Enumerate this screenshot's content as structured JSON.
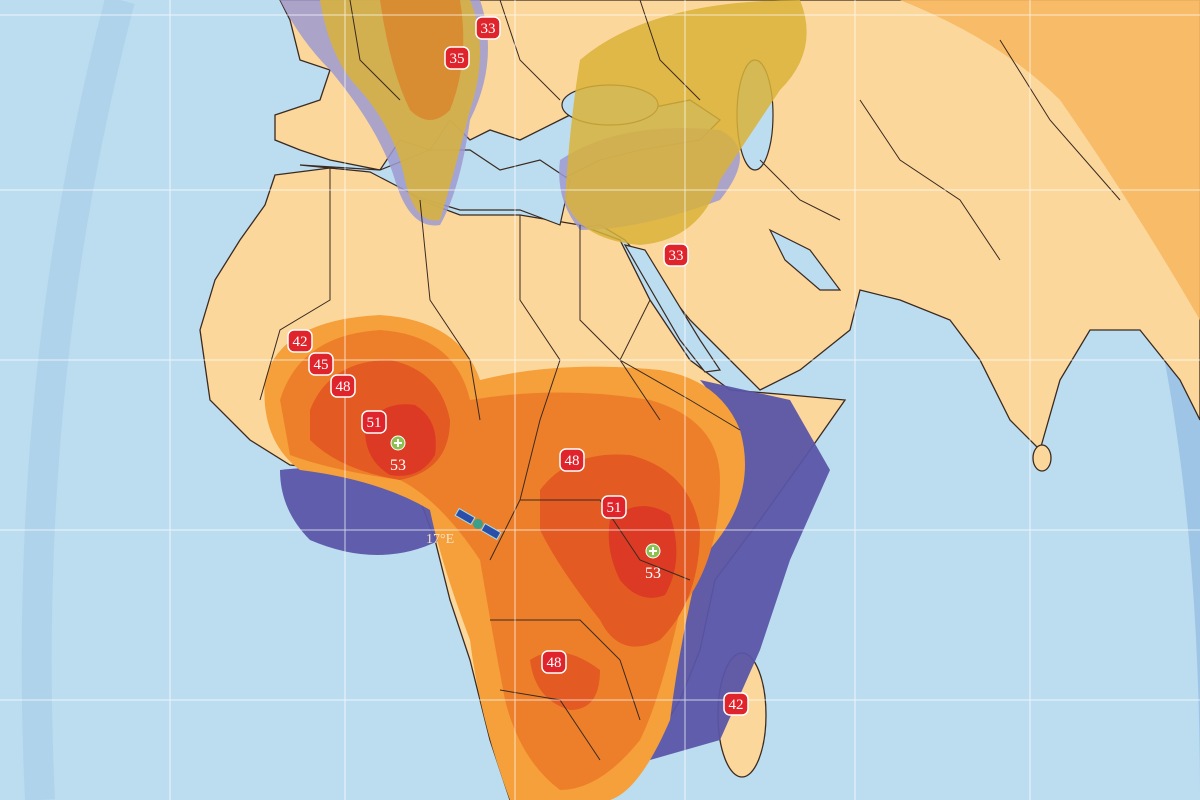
{
  "map": {
    "colors": {
      "ocean": "#bcdcf0",
      "land": "#fcd79c",
      "border": "#3a2a20",
      "contour_outer": "#f5a03a",
      "contour_mid": "#ee7f2a",
      "contour_inner": "#e35a22",
      "contour_peak": "#dc3a24",
      "edge_blue": "#5a55a8",
      "edge_blue_light": "#9d9ad0",
      "europe_yellow": "#d9b33a",
      "europe_orange": "#d98a30",
      "asia_orange": "#f7b862",
      "badge": "#e0242c",
      "peak_marker": "#8cc152"
    },
    "satellite": {
      "label": "17°E",
      "icon": "satellite-icon"
    },
    "eirp_labels": [
      {
        "value": "33",
        "region": "central-europe"
      },
      {
        "value": "35",
        "region": "alps"
      },
      {
        "value": "33",
        "region": "arabia"
      },
      {
        "value": "42",
        "region": "west-africa"
      },
      {
        "value": "45",
        "region": "west-africa"
      },
      {
        "value": "48",
        "region": "west-africa"
      },
      {
        "value": "51",
        "region": "west-africa"
      },
      {
        "value": "53",
        "region": "nigeria",
        "peak": true
      },
      {
        "value": "48",
        "region": "central-africa"
      },
      {
        "value": "51",
        "region": "east-africa"
      },
      {
        "value": "53",
        "region": "east-africa",
        "peak": true
      },
      {
        "value": "48",
        "region": "southern-africa"
      },
      {
        "value": "42",
        "region": "madagascar"
      }
    ]
  }
}
